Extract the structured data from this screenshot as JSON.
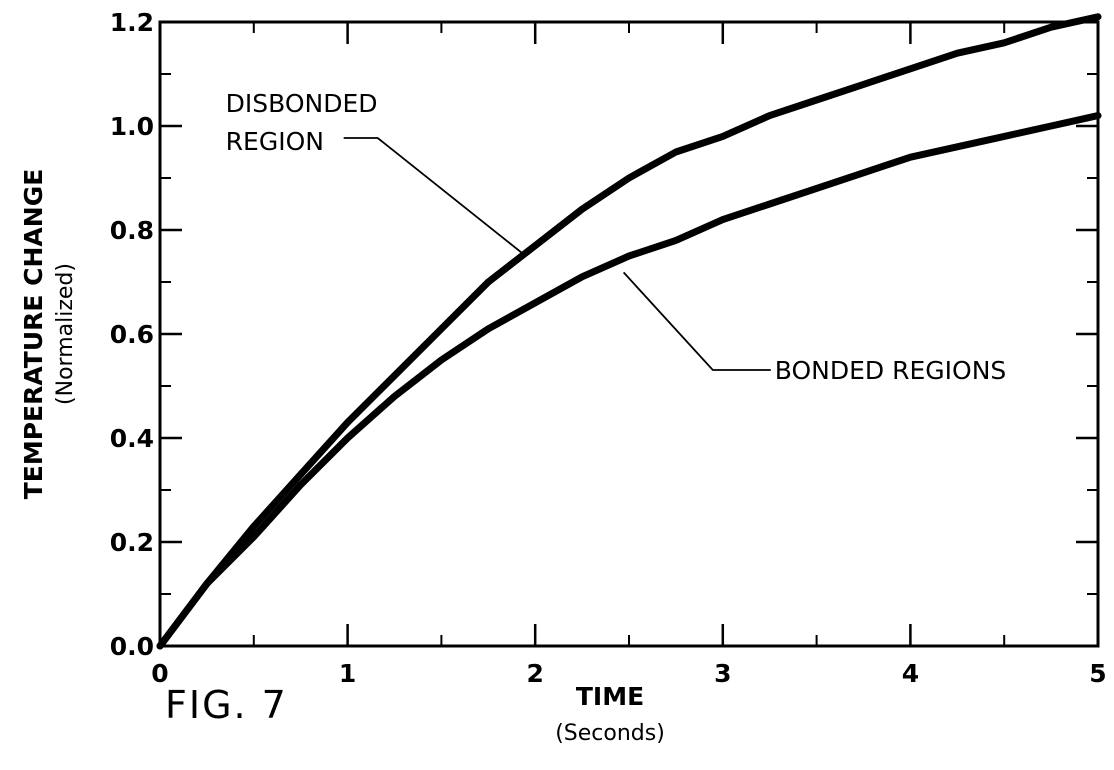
{
  "figure_label": "FIG. 7",
  "chart_data": {
    "type": "line",
    "title": "",
    "xlabel": "TIME",
    "xlabel_sub": "(Seconds)",
    "ylabel": "TEMPERATURE CHANGE",
    "ylabel_sub": "(Normalized)",
    "xlim": [
      0,
      5
    ],
    "ylim": [
      0,
      1.2
    ],
    "x_ticks": [
      0,
      1,
      2,
      3,
      4,
      5
    ],
    "x_tick_labels": [
      "0",
      "1",
      "2",
      "3",
      "4",
      "5"
    ],
    "y_ticks": [
      0,
      0.2,
      0.4,
      0.6,
      0.8,
      1.0,
      1.2
    ],
    "y_tick_labels": [
      "0.0",
      "0.2",
      "0.4",
      "0.6",
      "0.8",
      "1.0",
      "1.2"
    ],
    "x_minor_step": 0.5,
    "y_minor_step": 0.1,
    "grid": false,
    "series": [
      {
        "name": "DISBONDED REGION",
        "x": [
          0,
          0.25,
          0.5,
          0.75,
          1.0,
          1.25,
          1.5,
          1.75,
          2.0,
          2.25,
          2.5,
          2.75,
          3.0,
          3.25,
          3.5,
          3.75,
          4.0,
          4.25,
          4.5,
          4.75,
          5.0
        ],
        "y": [
          0.0,
          0.12,
          0.23,
          0.33,
          0.43,
          0.52,
          0.61,
          0.7,
          0.77,
          0.84,
          0.9,
          0.95,
          0.98,
          1.02,
          1.05,
          1.08,
          1.11,
          1.14,
          1.16,
          1.19,
          1.21
        ]
      },
      {
        "name": "BONDED REGIONS",
        "x": [
          0,
          0.25,
          0.5,
          0.75,
          1.0,
          1.25,
          1.5,
          1.75,
          2.0,
          2.25,
          2.5,
          2.75,
          3.0,
          3.25,
          3.5,
          3.75,
          4.0,
          4.25,
          4.5,
          4.75,
          5.0
        ],
        "y": [
          0.0,
          0.12,
          0.21,
          0.31,
          0.4,
          0.48,
          0.55,
          0.61,
          0.66,
          0.71,
          0.75,
          0.78,
          0.82,
          0.85,
          0.88,
          0.91,
          0.94,
          0.96,
          0.98,
          1.0,
          1.02
        ]
      }
    ],
    "annotations": [
      {
        "label_lines": [
          "DISBONDED",
          "REGION"
        ],
        "series": "DISBONDED REGION",
        "point": [
          1.95,
          0.75
        ],
        "text_anchor": [
          0.35,
          1.0
        ]
      },
      {
        "label_lines": [
          "BONDED REGIONS"
        ],
        "series": "BONDED REGIONS",
        "point": [
          2.45,
          0.73
        ],
        "text_anchor": [
          3.0,
          0.55
        ]
      }
    ]
  }
}
